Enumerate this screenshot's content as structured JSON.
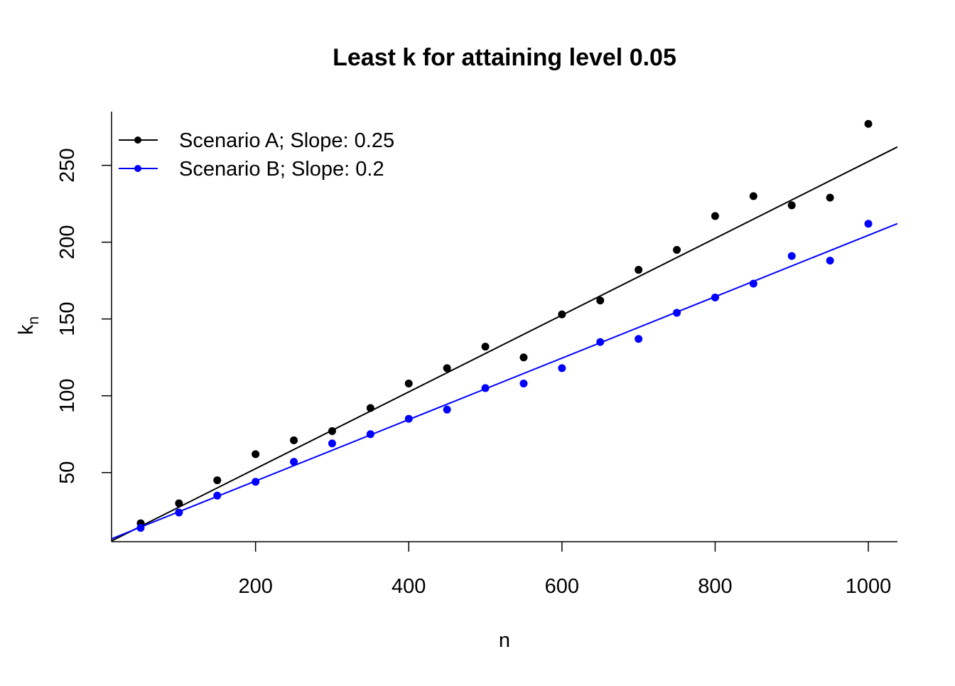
{
  "chart_data": {
    "type": "scatter",
    "title": "Least k for attaining level 0.05",
    "xlabel": "n",
    "ylabel": "k",
    "ylabel_subscript": "n",
    "xlim": [
      12,
      1038
    ],
    "ylim": [
      5,
      285
    ],
    "x_ticks": [
      200,
      400,
      600,
      800,
      1000
    ],
    "y_ticks": [
      50,
      100,
      150,
      200,
      250
    ],
    "legend_position": "top-left",
    "x": [
      50,
      100,
      150,
      200,
      250,
      300,
      350,
      400,
      450,
      500,
      550,
      600,
      650,
      700,
      750,
      800,
      850,
      900,
      950,
      1000
    ],
    "series": [
      {
        "name": "Scenario A; Slope: 0.25",
        "color": "#000000",
        "slope": 0.25,
        "intercept": 2.5,
        "values": [
          17,
          30,
          45,
          62,
          71,
          77,
          92,
          108,
          118,
          132,
          125,
          153,
          162,
          182,
          195,
          217,
          230,
          224,
          229,
          277
        ]
      },
      {
        "name": "Scenario B; Slope: 0.2",
        "color": "#0000FF",
        "slope": 0.2,
        "intercept": 4.5,
        "values": [
          14,
          24,
          35,
          44,
          57,
          69,
          75,
          85,
          91,
          105,
          108,
          118,
          135,
          137,
          154,
          164,
          173,
          191,
          188,
          212
        ]
      }
    ]
  }
}
